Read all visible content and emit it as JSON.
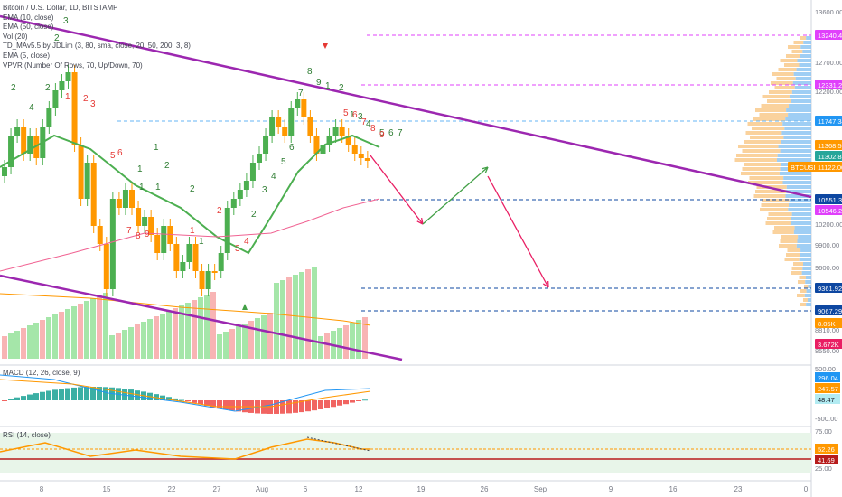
{
  "legend": {
    "title": "Bitcoin / U.S. Dollar, 1D, BITSTAMP",
    "indicators": [
      "EMA (10, close)",
      "EMA (50, close)",
      "Vol (20)",
      "TD_MAv5.5 by JDLim (3, 80, sma, close, 20, 50, 200, 3, 8)",
      "EMA (5, close)",
      "VPVR (Number Of Rows, 70, Up/Down, 70)"
    ]
  },
  "macd": {
    "label": "MACD (12, 26, close, 9)",
    "scale": [
      "500.00",
      "0.00",
      "-500.00"
    ],
    "tags": [
      "296.04",
      "247.57",
      "48.47"
    ]
  },
  "rsi": {
    "label": "RSI (14, close)",
    "scale": [
      "75.00",
      "25.00"
    ],
    "tags": [
      "52.26",
      "41.69"
    ]
  },
  "price_scale": [
    "13600.00",
    "12700.00",
    "12200.00",
    "10200.00",
    "9900.00",
    "9600.00",
    "9300.00",
    "8810.00",
    "8550.00"
  ],
  "price_tags": [
    {
      "text": "13240.46",
      "color": "#e040fb"
    },
    {
      "text": "12331.26",
      "color": "#e040fb"
    },
    {
      "text": "11747.34",
      "color": "#2196f3"
    },
    {
      "text": "11368.56",
      "color": "#ff9800"
    },
    {
      "text": "11302.85",
      "color": "#26a69a"
    },
    {
      "text": "BTCUSD",
      "color": "#ff9800"
    },
    {
      "text": "11122.00",
      "color": "#ff9800"
    },
    {
      "text": "10551.35",
      "color": "#0d47a1"
    },
    {
      "text": "10546.26",
      "color": "#e040fb"
    },
    {
      "text": "9361.92",
      "color": "#0d47a1"
    },
    {
      "text": "9067.29",
      "color": "#0d47a1"
    },
    {
      "text": "8.05K",
      "color": "#ff9800"
    },
    {
      "text": "3.672K",
      "color": "#e91e63"
    }
  ],
  "time_axis": [
    "8",
    "15",
    "22",
    "27",
    "Aug",
    "6",
    "12",
    "19",
    "26",
    "Sep",
    "9",
    "16",
    "23",
    "0"
  ],
  "td_counts": {
    "green": [
      "2",
      "3",
      "2",
      "4",
      "2",
      "1",
      "1",
      "2",
      "1",
      "1",
      "2",
      "1",
      "2",
      "3",
      "4",
      "5",
      "6",
      "7",
      "8",
      "9",
      "1",
      "2",
      "1",
      "3",
      "4",
      "5",
      "6",
      "7"
    ],
    "red": [
      "1",
      "2",
      "3",
      "5",
      "6",
      "7",
      "8",
      "9",
      "1",
      "2",
      "3",
      "4",
      "5",
      "6",
      "7",
      "8",
      "9"
    ]
  },
  "colors": {
    "up": "#26a69a",
    "down": "#ef5350",
    "candle_up": "#4caf50",
    "candle_down": "#ff9800",
    "trend": "#9c27b0",
    "ema10": "#4caf50",
    "ema50": "#f06292",
    "ema5": "#ff9800"
  }
}
